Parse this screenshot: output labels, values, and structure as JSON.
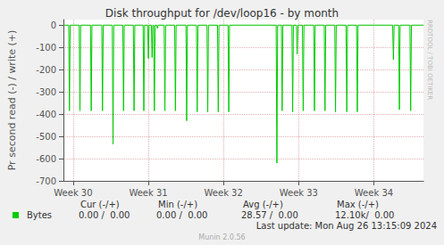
{
  "chart_data": {
    "type": "line",
    "title": "Disk throughput for /dev/loop16 - by month",
    "ylabel": "Pr second read (-) / write (+)",
    "x": [
      29.87,
      29.94,
      29.95,
      29.96,
      30.08,
      30.09,
      30.1,
      30.23,
      30.24,
      30.25,
      30.38,
      30.39,
      30.4,
      30.52,
      30.53,
      30.54,
      30.66,
      30.67,
      30.68,
      30.8,
      30.81,
      30.82,
      30.93,
      30.94,
      30.95,
      30.99,
      31.0,
      31.01,
      31.04,
      31.05,
      31.06,
      31.07,
      31.08,
      31.09,
      31.11,
      31.12,
      31.13,
      31.21,
      31.22,
      31.23,
      31.35,
      31.36,
      31.37,
      31.5,
      31.51,
      31.52,
      31.64,
      31.65,
      31.66,
      31.78,
      31.79,
      31.8,
      31.92,
      31.93,
      31.94,
      32.06,
      32.07,
      32.08,
      32.7,
      32.71,
      32.72,
      32.77,
      32.78,
      32.79,
      32.91,
      32.92,
      32.93,
      32.97,
      32.98,
      32.99,
      33.05,
      33.06,
      33.07,
      33.2,
      33.21,
      33.22,
      33.34,
      33.35,
      33.36,
      33.48,
      33.49,
      33.5,
      33.63,
      33.64,
      33.65,
      33.77,
      33.78,
      33.79,
      34.25,
      34.26,
      34.27,
      34.33,
      34.34,
      34.35,
      34.48,
      34.49,
      34.5,
      34.66
    ],
    "series": [
      {
        "name": "Bytes",
        "color": "#00cc00",
        "values": [
          0,
          0,
          -385,
          0,
          0,
          -385,
          0,
          0,
          -385,
          0,
          0,
          -385,
          0,
          0,
          -535,
          0,
          0,
          -385,
          0,
          0,
          -385,
          0,
          0,
          -385,
          0,
          0,
          -150,
          0,
          0,
          -145,
          0,
          0,
          -385,
          0,
          0,
          -15,
          0,
          0,
          -385,
          0,
          0,
          -385,
          0,
          0,
          -430,
          0,
          0,
          -390,
          0,
          0,
          -390,
          0,
          0,
          -390,
          0,
          0,
          -390,
          0,
          0,
          -620,
          0,
          0,
          -385,
          0,
          0,
          -390,
          0,
          0,
          -130,
          0,
          0,
          -385,
          0,
          0,
          -385,
          0,
          0,
          -385,
          0,
          0,
          -390,
          0,
          0,
          -390,
          0,
          0,
          -390,
          0,
          0,
          -155,
          0,
          0,
          -380,
          0,
          0,
          -385,
          0,
          0
        ]
      }
    ],
    "xlim": [
      29.87,
      34.66
    ],
    "xticks": [
      {
        "value": 30,
        "label": "Week 30"
      },
      {
        "value": 31,
        "label": "Week 31"
      },
      {
        "value": 32,
        "label": "Week 32"
      },
      {
        "value": 33,
        "label": "Week 33"
      },
      {
        "value": 34,
        "label": "Week 34"
      }
    ],
    "ylim": [
      -700,
      25
    ],
    "yticks": [
      -700,
      -600,
      -500,
      -400,
      -300,
      -200,
      -100,
      0
    ],
    "grid": true,
    "summary": {
      "columns": [
        "Cur (-/+)",
        "Min (-/+)",
        "Avg (-/+)",
        "Max (-/+)"
      ],
      "rows": [
        {
          "name": "Bytes",
          "cells": [
            "0.00 /  0.00",
            "0.00 /  0.00",
            "28.57 /  0.00",
            "12.10k/  0.00"
          ]
        }
      ]
    },
    "annotations": {
      "last_update": "Last update: Mon Aug 26 13:15:09 2024",
      "version": "Munin 2.0.56",
      "watermark": "RRDTOOL / TOBI OETIKER"
    }
  }
}
